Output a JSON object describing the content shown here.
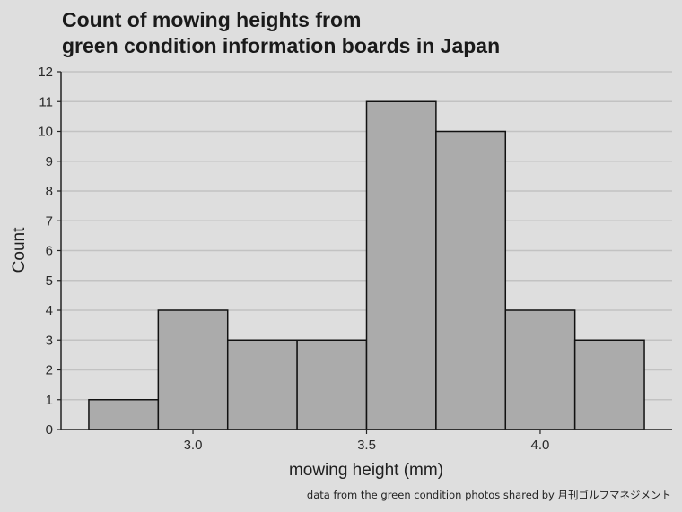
{
  "chart_data": {
    "type": "bar",
    "title_lines": [
      "Count of mowing heights from",
      "green condition information boards in Japan"
    ],
    "xlabel": "mowing height (mm)",
    "ylabel": "Count",
    "caption": "data from the green condition photos shared by 月刊ゴルフマネジメント",
    "bins": [
      {
        "x0": 2.7,
        "x1": 2.9,
        "count": 1
      },
      {
        "x0": 2.9,
        "x1": 3.1,
        "count": 4
      },
      {
        "x0": 3.1,
        "x1": 3.3,
        "count": 3
      },
      {
        "x0": 3.3,
        "x1": 3.5,
        "count": 3
      },
      {
        "x0": 3.5,
        "x1": 3.7,
        "count": 11
      },
      {
        "x0": 3.7,
        "x1": 3.9,
        "count": 10
      },
      {
        "x0": 3.9,
        "x1": 4.1,
        "count": 4
      },
      {
        "x0": 4.1,
        "x1": 4.3,
        "count": 3
      }
    ],
    "xlim": [
      2.62,
      4.38
    ],
    "ylim": [
      0,
      12
    ],
    "x_ticks": [
      3.0,
      3.5,
      4.0
    ],
    "x_tick_labels": [
      "3.0",
      "3.5",
      "4.0"
    ],
    "y_ticks": [
      0,
      1,
      2,
      3,
      4,
      5,
      6,
      7,
      8,
      9,
      10,
      11,
      12
    ],
    "y_tick_labels": [
      "0",
      "1",
      "2",
      "3",
      "4",
      "5",
      "6",
      "7",
      "8",
      "9",
      "10",
      "11",
      "12"
    ],
    "grid": "horizontal",
    "colors": {
      "bar_fill": "#ababab",
      "bar_stroke": "#111111",
      "background": "#dedede",
      "grid": "#c2c2c2"
    }
  }
}
